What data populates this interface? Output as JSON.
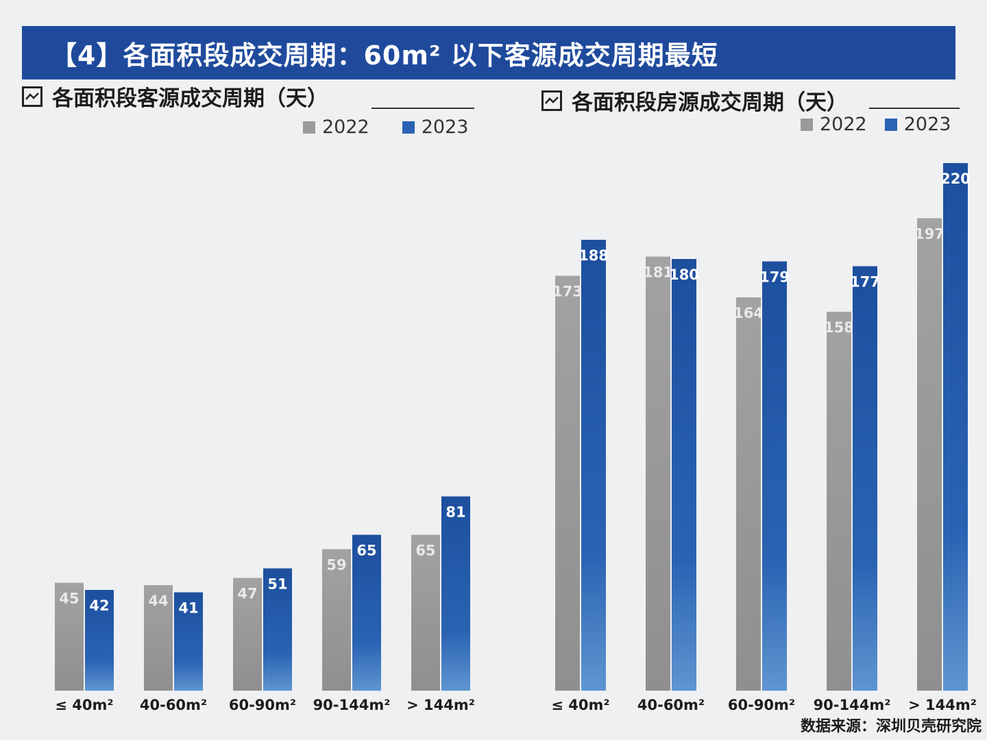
{
  "banner": {
    "title": "【4】各面积段成交周期：60m² 以下客源成交周期最短"
  },
  "colors": {
    "c2022": "#9a9a9b",
    "c2023": "#2a63b3",
    "banner": "#1f4a9c"
  },
  "source": "数据来源：深圳贝壳研究院",
  "chart_data": [
    {
      "type": "bar",
      "title": "各面积段客源成交周期（天）",
      "categories": [
        "≤ 40m²",
        "40-60m²",
        "60-90m²",
        "90-144m²",
        "> 144m²"
      ],
      "series": [
        {
          "name": "2022",
          "values": [
            45,
            44,
            47,
            59,
            65
          ]
        },
        {
          "name": "2023",
          "values": [
            42,
            41,
            51,
            65,
            81
          ]
        }
      ],
      "ylim": [
        0,
        230
      ]
    },
    {
      "type": "bar",
      "title": "各面积段房源成交周期（天）",
      "categories": [
        "≤ 40m²",
        "40-60m²",
        "60-90m²",
        "90-144m²",
        "> 144m²"
      ],
      "series": [
        {
          "name": "2022",
          "values": [
            173,
            181,
            164,
            158,
            197
          ]
        },
        {
          "name": "2023",
          "values": [
            188,
            180,
            179,
            177,
            220
          ]
        }
      ],
      "ylim": [
        0,
        230
      ]
    }
  ]
}
